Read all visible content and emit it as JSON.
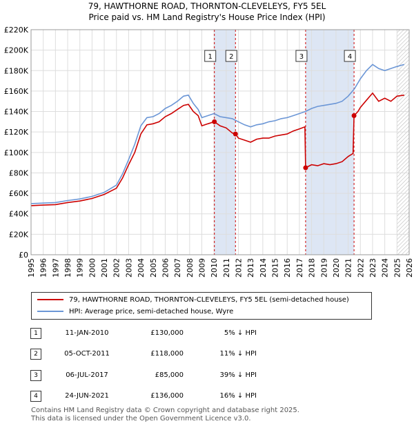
{
  "title_line1": "79, HAWTHORNE ROAD, THORNTON-CLEVELEYS, FY5 5EL",
  "title_line2": "Price paid vs. HM Land Registry's House Price Index (HPI)",
  "colors": {
    "property": "#cc0000",
    "hpi": "#6b96d6",
    "band": "#dde6f4",
    "grid": "#dddddd"
  },
  "chart_data": {
    "type": "line",
    "title": "Price paid vs. HM Land Registry's House Price Index (HPI)",
    "xlim": [
      1995,
      2026
    ],
    "ylim": [
      0,
      220000
    ],
    "x_ticks": [
      "1995",
      "1996",
      "1997",
      "1998",
      "1999",
      "2000",
      "2001",
      "2002",
      "2003",
      "2004",
      "2005",
      "2006",
      "2007",
      "2008",
      "2009",
      "2010",
      "2011",
      "2012",
      "2013",
      "2014",
      "2015",
      "2016",
      "2017",
      "2018",
      "2019",
      "2020",
      "2021",
      "2022",
      "2023",
      "2024",
      "2025",
      "2026"
    ],
    "y_ticks": [
      {
        "value": 0,
        "label": "£0"
      },
      {
        "value": 20000,
        "label": "£20K"
      },
      {
        "value": 40000,
        "label": "£40K"
      },
      {
        "value": 60000,
        "label": "£60K"
      },
      {
        "value": 80000,
        "label": "£80K"
      },
      {
        "value": 100000,
        "label": "£100K"
      },
      {
        "value": 120000,
        "label": "£120K"
      },
      {
        "value": 140000,
        "label": "£140K"
      },
      {
        "value": 160000,
        "label": "£160K"
      },
      {
        "value": 180000,
        "label": "£180K"
      },
      {
        "value": 200000,
        "label": "£200K"
      },
      {
        "value": 220000,
        "label": "£220K"
      }
    ],
    "shaded_ranges": [
      [
        2010.03,
        2011.76
      ],
      [
        2017.51,
        2021.48
      ]
    ],
    "forecast_from": 2025.0,
    "series": [
      {
        "name": "79, HAWTHORNE ROAD, THORNTON-CLEVELEYS, FY5 5EL (semi-detached house)",
        "color": "#cc0000",
        "points": [
          [
            1995,
            48000
          ],
          [
            1996,
            48500
          ],
          [
            1997,
            49000
          ],
          [
            1998,
            51000
          ],
          [
            1999,
            52500
          ],
          [
            2000,
            55000
          ],
          [
            2001,
            59000
          ],
          [
            2002,
            65000
          ],
          [
            2002.5,
            75000
          ],
          [
            2003,
            88000
          ],
          [
            2003.5,
            100000
          ],
          [
            2004,
            118000
          ],
          [
            2004.5,
            127000
          ],
          [
            2005,
            128000
          ],
          [
            2005.5,
            130000
          ],
          [
            2006,
            135000
          ],
          [
            2006.5,
            138000
          ],
          [
            2007,
            142000
          ],
          [
            2007.5,
            146000
          ],
          [
            2007.9,
            147000
          ],
          [
            2008.3,
            140000
          ],
          [
            2008.7,
            136000
          ],
          [
            2009,
            126000
          ],
          [
            2009.5,
            128000
          ],
          [
            2010.03,
            130000
          ],
          [
            2010.5,
            126000
          ],
          [
            2011,
            124000
          ],
          [
            2011.5,
            119000
          ],
          [
            2011.76,
            118000
          ],
          [
            2012,
            114000
          ],
          [
            2012.5,
            112000
          ],
          [
            2013,
            110000
          ],
          [
            2013.5,
            113000
          ],
          [
            2014,
            114000
          ],
          [
            2014.5,
            114000
          ],
          [
            2015,
            116000
          ],
          [
            2015.5,
            117000
          ],
          [
            2016,
            118000
          ],
          [
            2016.5,
            121000
          ],
          [
            2017,
            123000
          ],
          [
            2017.45,
            125000
          ],
          [
            2017.51,
            85000
          ],
          [
            2018,
            88000
          ],
          [
            2018.5,
            87000
          ],
          [
            2019,
            89000
          ],
          [
            2019.5,
            88000
          ],
          [
            2020,
            89000
          ],
          [
            2020.5,
            91000
          ],
          [
            2021,
            96000
          ],
          [
            2021.4,
            99000
          ],
          [
            2021.48,
            136000
          ],
          [
            2021.8,
            140000
          ],
          [
            2022,
            144000
          ],
          [
            2022.5,
            151000
          ],
          [
            2023,
            158000
          ],
          [
            2023.5,
            150000
          ],
          [
            2024,
            153000
          ],
          [
            2024.5,
            150000
          ],
          [
            2025,
            155000
          ],
          [
            2025.6,
            156000
          ]
        ]
      },
      {
        "name": "HPI: Average price, semi-detached house, Wyre",
        "color": "#6b96d6",
        "points": [
          [
            1995,
            50000
          ],
          [
            1996,
            50500
          ],
          [
            1997,
            51000
          ],
          [
            1998,
            53000
          ],
          [
            1999,
            54500
          ],
          [
            2000,
            57000
          ],
          [
            2001,
            61000
          ],
          [
            2002,
            68000
          ],
          [
            2002.5,
            79000
          ],
          [
            2003,
            93000
          ],
          [
            2003.5,
            108000
          ],
          [
            2004,
            126000
          ],
          [
            2004.5,
            134000
          ],
          [
            2005,
            135000
          ],
          [
            2005.5,
            138000
          ],
          [
            2006,
            143000
          ],
          [
            2006.5,
            146000
          ],
          [
            2007,
            150000
          ],
          [
            2007.5,
            155000
          ],
          [
            2007.9,
            156000
          ],
          [
            2008.3,
            148000
          ],
          [
            2008.7,
            142000
          ],
          [
            2009,
            134000
          ],
          [
            2009.5,
            136000
          ],
          [
            2010,
            138000
          ],
          [
            2010.5,
            135000
          ],
          [
            2011,
            134000
          ],
          [
            2011.5,
            133000
          ],
          [
            2012,
            130000
          ],
          [
            2012.5,
            127000
          ],
          [
            2013,
            125000
          ],
          [
            2013.5,
            127000
          ],
          [
            2014,
            128000
          ],
          [
            2014.5,
            130000
          ],
          [
            2015,
            131000
          ],
          [
            2015.5,
            133000
          ],
          [
            2016,
            134000
          ],
          [
            2016.5,
            136000
          ],
          [
            2017,
            138000
          ],
          [
            2017.5,
            140000
          ],
          [
            2018,
            143000
          ],
          [
            2018.5,
            145000
          ],
          [
            2019,
            146000
          ],
          [
            2019.5,
            147000
          ],
          [
            2020,
            148000
          ],
          [
            2020.5,
            150000
          ],
          [
            2021,
            155000
          ],
          [
            2021.5,
            162000
          ],
          [
            2022,
            172000
          ],
          [
            2022.5,
            180000
          ],
          [
            2023,
            186000
          ],
          [
            2023.5,
            182000
          ],
          [
            2024,
            180000
          ],
          [
            2024.5,
            182000
          ],
          [
            2025,
            184000
          ],
          [
            2025.6,
            186000
          ]
        ]
      }
    ],
    "sales": [
      {
        "id": "1",
        "x": 2010.03,
        "price": 130000
      },
      {
        "id": "2",
        "x": 2011.76,
        "price": 118000
      },
      {
        "id": "3",
        "x": 2017.51,
        "price": 85000
      },
      {
        "id": "4",
        "x": 2021.48,
        "price": 136000
      }
    ],
    "marker_labels": [
      "1",
      "2",
      "3",
      "4"
    ]
  },
  "legend": {
    "property": "79, HAWTHORNE ROAD, THORNTON-CLEVELEYS, FY5 5EL (semi-detached house)",
    "hpi": "HPI: Average price, semi-detached house, Wyre"
  },
  "transactions": [
    {
      "num": "1",
      "date": "11-JAN-2010",
      "price": "£130,000",
      "pct": "5% ↓ HPI"
    },
    {
      "num": "2",
      "date": "05-OCT-2011",
      "price": "£118,000",
      "pct": "11% ↓ HPI"
    },
    {
      "num": "3",
      "date": "06-JUL-2017",
      "price": "£85,000",
      "pct": "39% ↓ HPI"
    },
    {
      "num": "4",
      "date": "24-JUN-2021",
      "price": "£136,000",
      "pct": "16% ↓ HPI"
    }
  ],
  "footer_line1": "Contains HM Land Registry data © Crown copyright and database right 2025.",
  "footer_line2": "This data is licensed under the Open Government Licence v3.0."
}
